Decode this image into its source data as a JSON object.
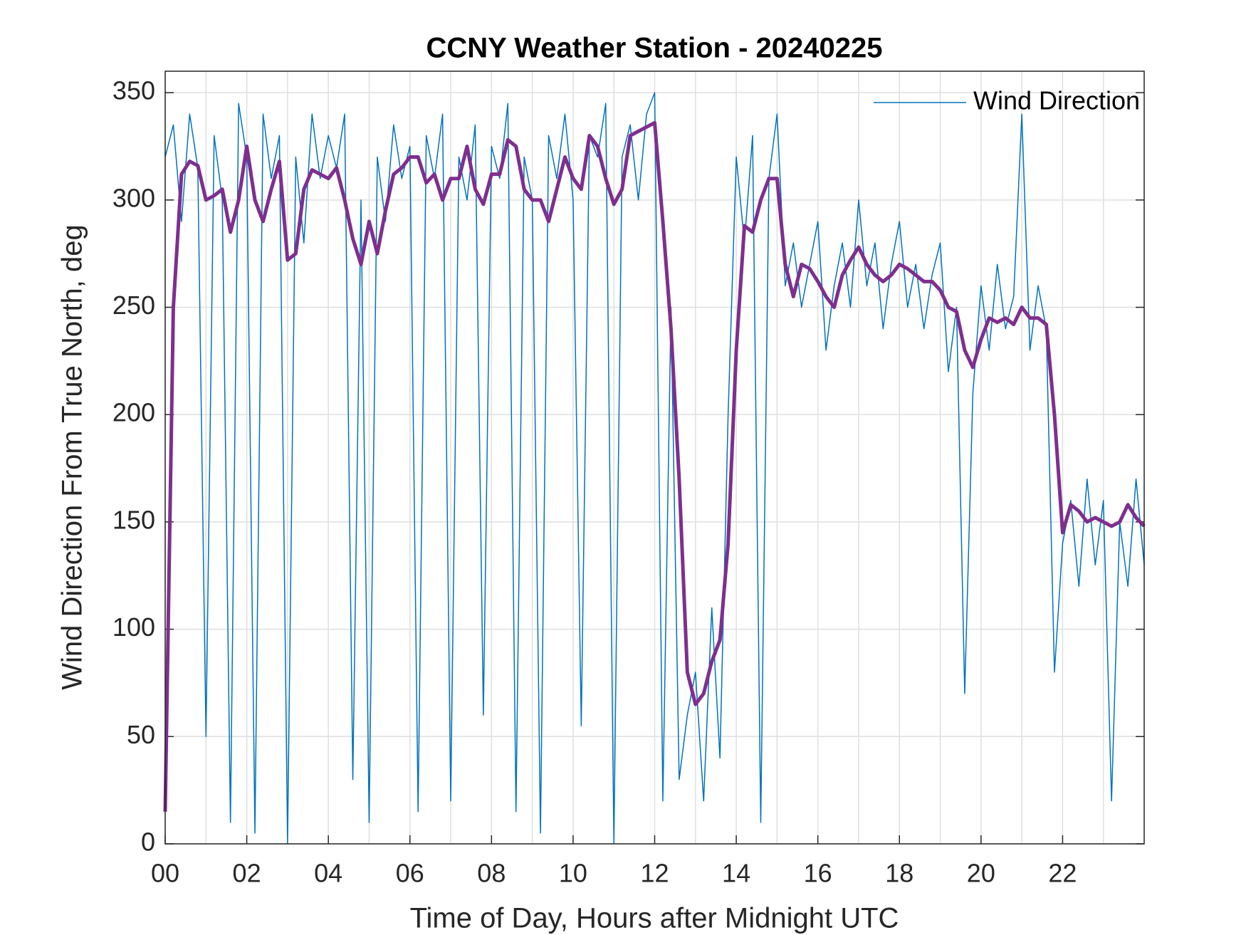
{
  "chart_data": {
    "type": "line",
    "title": "CCNY Weather Station - 20240225",
    "xlabel": "Time of Day, Hours after Midnight UTC",
    "ylabel": "Wind Direction From True North, deg",
    "x": [
      0,
      0.2,
      0.4,
      0.6,
      0.8,
      1,
      1.2,
      1.4,
      1.6,
      1.8,
      2,
      2.2,
      2.4,
      2.6,
      2.8,
      3,
      3.2,
      3.4,
      3.6,
      3.8,
      4,
      4.2,
      4.4,
      4.6,
      4.8,
      5,
      5.2,
      5.4,
      5.6,
      5.8,
      6,
      6.2,
      6.4,
      6.6,
      6.8,
      7,
      7.2,
      7.4,
      7.6,
      7.8,
      8,
      8.2,
      8.4,
      8.6,
      8.8,
      9,
      9.2,
      9.4,
      9.6,
      9.8,
      10,
      10.2,
      10.4,
      10.6,
      10.8,
      11,
      11.2,
      11.4,
      11.6,
      11.8,
      12,
      12.2,
      12.4,
      12.6,
      12.8,
      13,
      13.2,
      13.4,
      13.6,
      13.8,
      14,
      14.2,
      14.4,
      14.6,
      14.8,
      15,
      15.2,
      15.4,
      15.6,
      15.8,
      16,
      16.2,
      16.4,
      16.6,
      16.8,
      17,
      17.2,
      17.4,
      17.6,
      17.8,
      18,
      18.2,
      18.4,
      18.6,
      18.8,
      19,
      19.2,
      19.4,
      19.6,
      19.8,
      20,
      20.2,
      20.4,
      20.6,
      20.8,
      21,
      21.2,
      21.4,
      21.6,
      21.8,
      22,
      22.2,
      22.4,
      22.6,
      22.8,
      23,
      23.2,
      23.4,
      23.6,
      23.8,
      24
    ],
    "series": [
      {
        "name": "Wind Direction",
        "color": "#0072BD",
        "width": 1.5,
        "values": [
          320,
          335,
          290,
          340,
          315,
          50,
          330,
          300,
          10,
          345,
          320,
          5,
          340,
          310,
          330,
          0,
          320,
          280,
          340,
          310,
          330,
          315,
          340,
          30,
          300,
          10,
          320,
          290,
          335,
          310,
          325,
          15,
          330,
          310,
          340,
          20,
          320,
          300,
          335,
          60,
          325,
          310,
          345,
          15,
          320,
          300,
          5,
          330,
          310,
          340,
          300,
          55,
          330,
          320,
          345,
          0,
          320,
          335,
          300,
          340,
          350,
          20,
          250,
          30,
          60,
          80,
          20,
          110,
          40,
          200,
          320,
          280,
          330,
          10,
          310,
          340,
          260,
          280,
          250,
          270,
          290,
          230,
          260,
          280,
          250,
          300,
          260,
          280,
          240,
          270,
          290,
          250,
          270,
          240,
          265,
          280,
          220,
          250,
          70,
          210,
          260,
          230,
          270,
          240,
          255,
          340,
          230,
          260,
          240,
          80,
          140,
          160,
          120,
          170,
          130,
          160,
          20,
          150,
          120,
          170,
          130
        ]
      },
      {
        "color": "#7E2F8E",
        "width": 5,
        "values": [
          15,
          250,
          312,
          318,
          316,
          300,
          302,
          305,
          285,
          300,
          325,
          300,
          290,
          305,
          318,
          272,
          275,
          305,
          314,
          312,
          310,
          315,
          300,
          282,
          270,
          290,
          275,
          295,
          312,
          315,
          320,
          320,
          308,
          312,
          300,
          310,
          310,
          325,
          305,
          298,
          312,
          312,
          328,
          325,
          305,
          300,
          300,
          290,
          305,
          320,
          310,
          305,
          330,
          325,
          310,
          298,
          305,
          330,
          332,
          334,
          336,
          290,
          240,
          170,
          80,
          65,
          70,
          85,
          95,
          140,
          230,
          288,
          285,
          300,
          310,
          310,
          270,
          255,
          270,
          268,
          262,
          255,
          250,
          265,
          272,
          278,
          270,
          265,
          262,
          265,
          270,
          268,
          265,
          262,
          262,
          258,
          250,
          248,
          230,
          222,
          235,
          245,
          243,
          245,
          242,
          250,
          245,
          245,
          242,
          200,
          145,
          158,
          155,
          150,
          152,
          150,
          148,
          150,
          158,
          152,
          148
        ]
      }
    ],
    "xlim": [
      0,
      24
    ],
    "ylim": [
      0,
      360
    ],
    "xticks": [
      {
        "value": 0,
        "label": "00"
      },
      {
        "value": 2,
        "label": "02"
      },
      {
        "value": 4,
        "label": "04"
      },
      {
        "value": 6,
        "label": "06"
      },
      {
        "value": 8,
        "label": "08"
      },
      {
        "value": 10,
        "label": "10"
      },
      {
        "value": 12,
        "label": "12"
      },
      {
        "value": 14,
        "label": "14"
      },
      {
        "value": 16,
        "label": "16"
      },
      {
        "value": 18,
        "label": "18"
      },
      {
        "value": 20,
        "label": "20"
      },
      {
        "value": 22,
        "label": "22"
      }
    ],
    "xminor": [
      1,
      3,
      5,
      7,
      9,
      11,
      13,
      15,
      17,
      19,
      21,
      23
    ],
    "yticks": [
      0,
      50,
      100,
      150,
      200,
      250,
      300,
      350
    ],
    "grid": true,
    "legend": "upper right"
  }
}
